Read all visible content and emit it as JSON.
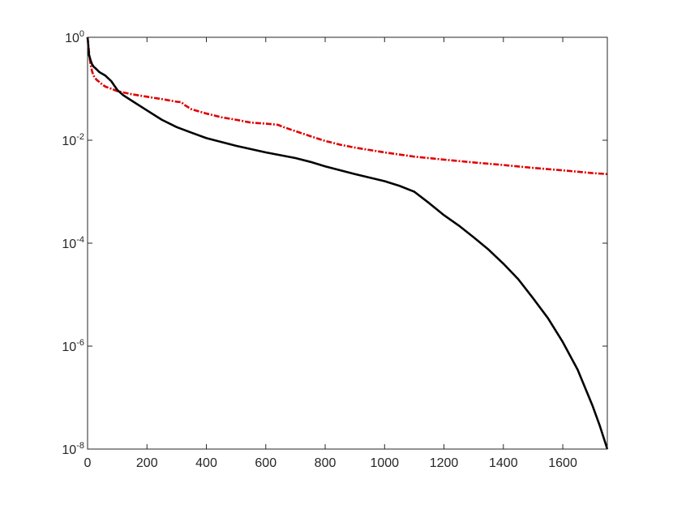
{
  "chart_data": {
    "type": "line",
    "title": "",
    "xlabel": "",
    "ylabel": "",
    "xlim": [
      0,
      1750
    ],
    "ylim": [
      1e-08,
      1
    ],
    "yscale": "log",
    "grid": false,
    "box": true,
    "xticks": [
      0,
      200,
      400,
      600,
      800,
      1000,
      1200,
      1400,
      1600
    ],
    "xtick_labels": [
      "0",
      "200",
      "400",
      "600",
      "800",
      "1000",
      "1200",
      "1400",
      "1600"
    ],
    "yticks": [
      {
        "value": 1e-08,
        "base": "10",
        "exp": "-8"
      },
      {
        "value": 1e-06,
        "base": "10",
        "exp": "-6"
      },
      {
        "value": 0.0001,
        "base": "10",
        "exp": "-4"
      },
      {
        "value": 0.01,
        "base": "10",
        "exp": "-2"
      },
      {
        "value": 1,
        "base": "10",
        "exp": "0"
      }
    ],
    "series": [
      {
        "color": "#e00000",
        "style": "dash-dot",
        "x": [
          0,
          2,
          5,
          10,
          15,
          20,
          30,
          40,
          50,
          60,
          80,
          100,
          120,
          150,
          200,
          250,
          300,
          315,
          330,
          350,
          400,
          450,
          500,
          550,
          600,
          640,
          660,
          700,
          750,
          800,
          850,
          900,
          1000,
          1100,
          1200,
          1300,
          1400,
          1500,
          1600,
          1700,
          1750
        ],
        "y": [
          1,
          0.8,
          0.5,
          0.3,
          0.22,
          0.18,
          0.15,
          0.135,
          0.12,
          0.11,
          0.1,
          0.09,
          0.085,
          0.078,
          0.07,
          0.063,
          0.056,
          0.055,
          0.047,
          0.04,
          0.033,
          0.028,
          0.025,
          0.022,
          0.021,
          0.02,
          0.018,
          0.015,
          0.012,
          0.0097,
          0.0082,
          0.0072,
          0.0058,
          0.0048,
          0.0042,
          0.0037,
          0.0033,
          0.0029,
          0.0026,
          0.0023,
          0.0022
        ]
      },
      {
        "color": "#000000",
        "style": "solid",
        "x": [
          0,
          2,
          5,
          10,
          15,
          20,
          30,
          40,
          60,
          80,
          100,
          120,
          150,
          200,
          250,
          300,
          350,
          400,
          500,
          600,
          700,
          750,
          800,
          900,
          1000,
          1050,
          1100,
          1150,
          1200,
          1250,
          1300,
          1350,
          1400,
          1450,
          1500,
          1550,
          1600,
          1650,
          1700,
          1725,
          1750
        ],
        "y": [
          1,
          0.7,
          0.45,
          0.36,
          0.3,
          0.27,
          0.24,
          0.21,
          0.18,
          0.14,
          0.095,
          0.075,
          0.058,
          0.038,
          0.025,
          0.018,
          0.014,
          0.011,
          0.0078,
          0.0058,
          0.0045,
          0.0038,
          0.0031,
          0.0022,
          0.0016,
          0.0013,
          0.001,
          0.0006,
          0.00035,
          0.00022,
          0.00013,
          7.5e-05,
          4e-05,
          2e-05,
          8.5e-06,
          3.5e-06,
          1.2e-06,
          3.5e-07,
          7e-08,
          2.8e-08,
          1e-08
        ]
      }
    ]
  }
}
